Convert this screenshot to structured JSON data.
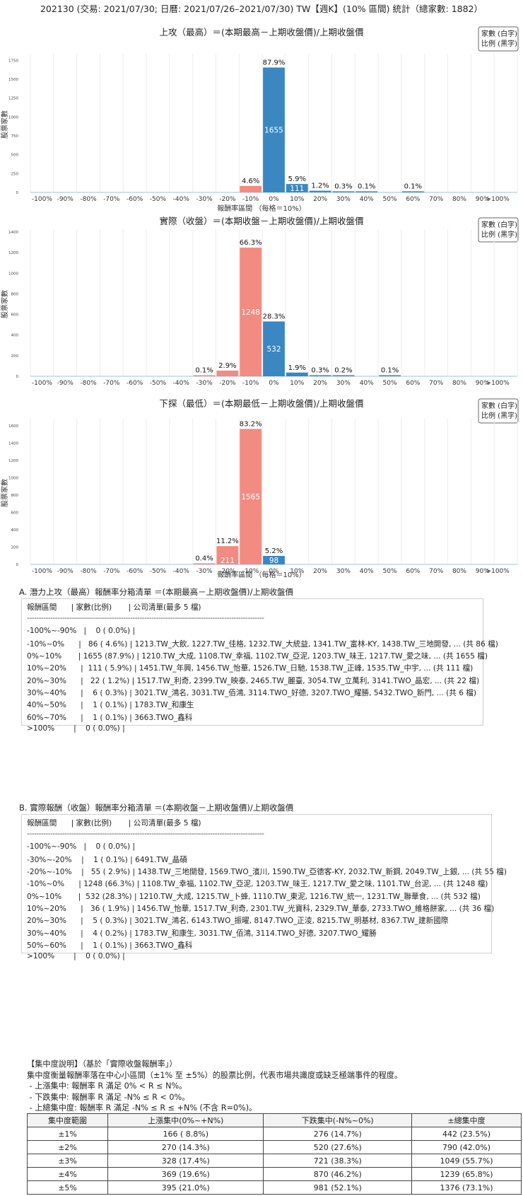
{
  "page_title": "202130 (交易: 2021/07/30; 日曆: 2021/07/26–2021/07/30) TW【週K】(10% 區間) 統計（總家數: 1882）",
  "chart_data": [
    {
      "type": "bar",
      "title": "上攻（最高）＝(本期最高－上期收盤價)/上期收盤價",
      "xlabel": "報酬率區間 （每格＝10%）",
      "ylabel": "股票家數",
      "legend": [
        "家數 (白字)",
        "比例 (黑字)"
      ],
      "legend_position": "top-right",
      "categories": [
        "-100%",
        "-90%",
        "-80%",
        "-70%",
        "-60%",
        "-50%",
        "-40%",
        "-30%",
        "-20%",
        "-10%",
        "0%",
        "10%",
        "20%",
        "30%",
        "40%",
        "50%",
        "60%",
        "70%",
        "80%",
        "90%",
        ">100%"
      ],
      "bars": [
        {
          "bin_start": -10,
          "value": 86,
          "pct": "4.6%",
          "color": "#f28b82"
        },
        {
          "bin_start": 0,
          "value": 1655,
          "pct": "87.9%",
          "color": "#3a87c2"
        },
        {
          "bin_start": 10,
          "value": 111,
          "pct": "5.9%",
          "color": "#3a87c2"
        },
        {
          "bin_start": 20,
          "value": 22,
          "pct": "1.2%",
          "color": "#3a87c2"
        },
        {
          "bin_start": 30,
          "value": 6,
          "pct": "0.3%",
          "color": "#3a87c2"
        },
        {
          "bin_start": 40,
          "value": 1,
          "pct": "0.1%",
          "color": "#3a87c2"
        },
        {
          "bin_start": 60,
          "value": 1,
          "pct": "0.1%",
          "color": "#3a87c2"
        }
      ],
      "yticks": [
        0,
        250,
        500,
        750,
        1000,
        1250,
        1500,
        1750
      ],
      "ylim": [
        0,
        1800
      ],
      "grid": "vertical"
    },
    {
      "type": "bar",
      "title": "實際（收盤）＝(本期收盤－上期收盤價)/上期收盤價",
      "xlabel": "",
      "ylabel": "股票家數",
      "legend": [
        "家數 (白字)",
        "比例 (黑字)"
      ],
      "legend_position": "top-right",
      "categories": [
        "-100%",
        "-90%",
        "-80%",
        "-70%",
        "-60%",
        "-50%",
        "-40%",
        "-30%",
        "-20%",
        "-10%",
        "0%",
        "10%",
        "20%",
        "30%",
        "40%",
        "50%",
        "60%",
        "70%",
        "80%",
        "90%",
        ">100%"
      ],
      "bars": [
        {
          "bin_start": -30,
          "value": 1,
          "pct": "0.1%",
          "color": "#f28b82"
        },
        {
          "bin_start": -20,
          "value": 55,
          "pct": "2.9%",
          "color": "#f28b82"
        },
        {
          "bin_start": -10,
          "value": 1248,
          "pct": "66.3%",
          "color": "#f28b82"
        },
        {
          "bin_start": 0,
          "value": 532,
          "pct": "28.3%",
          "color": "#3a87c2"
        },
        {
          "bin_start": 10,
          "value": 36,
          "pct": "1.9%",
          "color": "#3a87c2"
        },
        {
          "bin_start": 20,
          "value": 5,
          "pct": "0.3%",
          "color": "#3a87c2"
        },
        {
          "bin_start": 30,
          "value": 4,
          "pct": "0.2%",
          "color": "#3a87c2"
        },
        {
          "bin_start": 50,
          "value": 1,
          "pct": "0.1%",
          "color": "#3a87c2"
        }
      ],
      "yticks": [
        0,
        200,
        400,
        600,
        800,
        1000,
        1200,
        1400
      ],
      "ylim": [
        0,
        1400
      ],
      "grid": "vertical"
    },
    {
      "type": "bar",
      "title": "下探（最低）＝(本期最低－上期收盤價)/上期收盤價",
      "xlabel": "報酬率區間 （每格＝10%）",
      "ylabel": "股票家數",
      "legend": [
        "家數 (白字)",
        "比例 (黑字)"
      ],
      "legend_position": "top-right",
      "categories": [
        "-100%",
        "-90%",
        "-80%",
        "-70%",
        "-60%",
        "-50%",
        "-40%",
        "-30%",
        "-20%",
        "-10%",
        "0%",
        "10%",
        "20%",
        "30%",
        "40%",
        "50%",
        "60%",
        "70%",
        "80%",
        "90%",
        ">100%"
      ],
      "bars": [
        {
          "bin_start": -30,
          "value": 8,
          "pct": "0.4%",
          "color": "#f28b82"
        },
        {
          "bin_start": -20,
          "value": 211,
          "pct": "11.2%",
          "color": "#f28b82"
        },
        {
          "bin_start": -10,
          "value": 1565,
          "pct": "83.2%",
          "color": "#f28b82"
        },
        {
          "bin_start": 0,
          "value": 98,
          "pct": "5.2%",
          "color": "#3a87c2"
        }
      ],
      "yticks": [
        0,
        200,
        400,
        600,
        800,
        1000,
        1200,
        1400,
        1600
      ],
      "ylim": [
        0,
        1650
      ],
      "grid": "vertical"
    }
  ],
  "section_a": {
    "title": "A. 潛力上攻（最高）報酬率分箱清單 ＝(本期最高－上期收盤價)/上期收盤價",
    "header": "報酬區間      | 家數(比例)       | 公司清單(最多 5 檔)",
    "separator": "-----------------------------------------------------------------------------------------------------",
    "rows": [
      "-100%~-90%   |    0 ( 0.0%) |",
      "-10%~0%      |   86 ( 4.6%) | 1213.TW_大飲, 1227.TW_佳格, 1232.TW_大統益, 1341.TW_富林-KY, 1438.TW_三地開發, ... (共 86 檔)",
      "0%~10%       | 1655 (87.9%) | 1210.TW_大成, 1108.TW_幸福, 1102.TW_亞泥, 1203.TW_味王, 1217.TW_愛之味, ... (共 1655 檔)",
      "10%~20%      |  111 ( 5.9%) | 1451.TW_年興, 1456.TW_怡華, 1526.TW_日馳, 1538.TW_正峰, 1535.TW_中宇, ... (共 111 檔)",
      "20%~30%      |   22 ( 1.2%) | 1517.TW_利奇, 2399.TW_映泰, 2465.TW_麗臺, 3054.TW_立萬利, 3141.TWO_晶宏, ... (共 22 檔)",
      "30%~40%      |    6 ( 0.3%) | 3021.TW_鴻名, 3031.TW_佰鴻, 3114.TWO_好德, 3207.TWO_耀勝, 5432.TWO_新門, ... (共 6 檔)",
      "40%~50%      |    1 ( 0.1%) | 1783.TW_和康生",
      "60%~70%      |    1 ( 0.1%) | 3663.TWO_鑫科",
      ">100%        |    0 ( 0.0%) |"
    ]
  },
  "section_b": {
    "title": "B. 實際報酬（收盤）報酬率分箱清單 ＝(本期收盤－上期收盤價)/上期收盤價",
    "header": "報酬區間      | 家數(比例)       | 公司清單(最多 5 檔)",
    "separator": "-----------------------------------------------------------------------------------------------------",
    "rows": [
      "-100%~-90%   |    0 ( 0.0%) |",
      "-30%~-20%    |    1 ( 0.1%) | 6491.TW_晶碩",
      "-20%~-10%    |   55 ( 2.9%) | 1438.TW_三地開發, 1569.TWO_濱川, 1590.TW_亞德客-KY, 2032.TW_新鋼, 2049.TW_上銀, ... (共 55 檔)",
      "-10%~0%      | 1248 (66.3%) | 1108.TW_幸福, 1102.TW_亞泥, 1203.TW_味王, 1217.TW_愛之味, 1101.TW_台泥, ... (共 1248 檔)",
      "0%~10%       |  532 (28.3%) | 1210.TW_大成, 1215.TW_卜蜂, 1110.TW_東泥, 1216.TW_統一, 1231.TW_聯華食, ... (共 532 檔)",
      "10%~20%      |   36 ( 1.9%) | 1456.TW_怡華, 1517.TW_利奇, 2301.TW_光寶科, 2329.TW_華泰, 2733.TWO_維格餅家, ... (共 36 檔)",
      "20%~30%      |    5 ( 0.3%) | 3021.TW_鴻名, 6143.TWO_振曜, 8147.TWO_正淩, 8215.TW_明基材, 8367.TW_建新國際",
      "30%~40%      |    4 ( 0.2%) | 1783.TW_和康生, 3031.TW_佰鴻, 3114.TWO_好德, 3207.TWO_耀勝",
      "50%~60%      |    1 ( 0.1%) | 3663.TWO_鑫科",
      ">100%        |    0 ( 0.0%) |"
    ]
  },
  "concentration": {
    "lines": [
      "【集中度說明】（基於「實際收盤報酬率」）",
      "集中度衡量報酬率落在中心小區間（±1% 至 ±5%）的股票比例，代表市場共識度或缺乏極端事件的程度。",
      " - 上漲集中: 報酬率 R 滿足 0% < R ≤ N%。",
      " - 下跌集中: 報酬率 R 滿足 -N% ≤ R < 0%。",
      " - 上總集中度: 報酬率 R 滿足 -N% ≤ R ≤ +N% (不含 R=0%)。"
    ],
    "table": {
      "headers": [
        "集中度範圍",
        "上漲集中(0%~+N%)",
        "下跌集中(-N%~0%)",
        "±總集中度"
      ],
      "rows": [
        [
          "±1%",
          "166 ( 8.8%)",
          "276 (14.7%)",
          "442 (23.5%)"
        ],
        [
          "±2%",
          "270 (14.3%)",
          "520 (27.6%)",
          "790 (42.0%)"
        ],
        [
          "±3%",
          "328 (17.4%)",
          "721 (38.3%)",
          "1049 (55.7%)"
        ],
        [
          "±4%",
          "369 (19.6%)",
          "870 (46.2%)",
          "1239 (65.8%)"
        ],
        [
          "±5%",
          "395 (21.0%)",
          "981 (52.1%)",
          "1376 (73.1%)"
        ]
      ]
    }
  }
}
